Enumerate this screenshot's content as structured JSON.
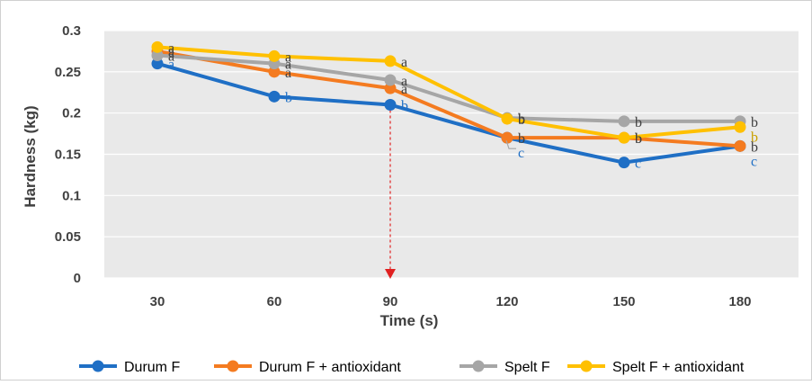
{
  "chart_data": {
    "type": "line",
    "title": "",
    "xlabel": "Time (s)",
    "ylabel": "Hardness (kg)",
    "x": [
      30,
      60,
      90,
      120,
      150,
      180
    ],
    "x_tick_labels": [
      "30",
      "60",
      "90",
      "120",
      "150",
      "180"
    ],
    "ylim": [
      0,
      0.3
    ],
    "y_ticks": [
      0,
      0.05,
      0.1,
      0.15,
      0.2,
      0.25,
      0.3
    ],
    "y_tick_labels": [
      "0",
      "0.05",
      "0.1",
      "0.15",
      "0.2",
      "0.25",
      "0.3"
    ],
    "grid": true,
    "legend_position": "bottom",
    "marker_arrow_at_x": 90,
    "series": [
      {
        "name": "Durum F",
        "color": "#1F6FC5",
        "values": [
          0.26,
          0.22,
          0.21,
          0.17,
          0.14,
          0.16
        ],
        "labels": [
          "a",
          "b",
          "b",
          "c",
          "c",
          "c"
        ]
      },
      {
        "name": "Durum F + antioxidant",
        "color": "#F47B20",
        "values": [
          0.275,
          0.25,
          0.23,
          0.17,
          0.17,
          0.16
        ],
        "labels": [
          "a",
          "a",
          "a",
          "b",
          "b",
          "b"
        ]
      },
      {
        "name": "Spelt F",
        "color": "#A6A6A6",
        "values": [
          0.27,
          0.26,
          0.24,
          0.194,
          0.19,
          0.19
        ],
        "labels": [
          "a",
          "a",
          "a",
          "b",
          "b",
          "b"
        ]
      },
      {
        "name": "Spelt F + antioxidant",
        "color": "#FFC000",
        "values": [
          0.28,
          0.269,
          0.263,
          0.193,
          0.17,
          0.183
        ],
        "labels": [
          "a",
          "a",
          "a",
          "b",
          "b",
          "b"
        ]
      }
    ]
  }
}
